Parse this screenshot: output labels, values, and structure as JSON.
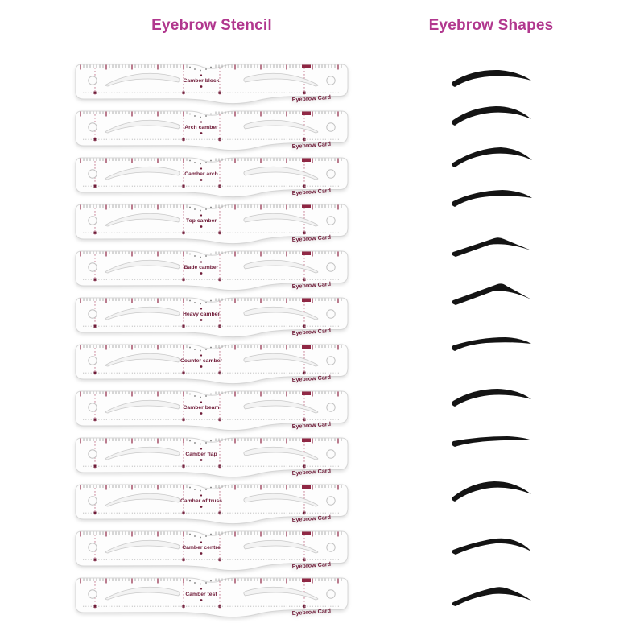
{
  "titles": {
    "left": "Eyebrow Stencil",
    "right": "Eyebrow Shapes",
    "color": "#b1378e"
  },
  "stencil_cards": {
    "brand_label": "Eyebrow Card",
    "count": 12,
    "labels": [
      "Camber block",
      "Arch camber",
      "Camber arch",
      "Top camber",
      "Bade camber",
      "Heavy camber",
      "Counter camber",
      "Camber beam",
      "Camber flap",
      "Camber of truss",
      "Camber centre",
      "Camber test"
    ],
    "text_color": "#6f1b38",
    "ruler_accent_color": "#8f2744",
    "card_fill": "#fdfdfd",
    "card_border": "#d6d6d6"
  },
  "eyebrow_shapes": {
    "count": 12,
    "color": "#141414"
  }
}
